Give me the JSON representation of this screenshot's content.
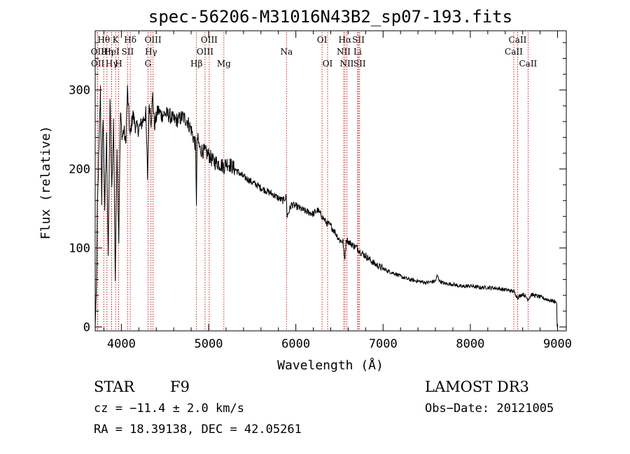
{
  "chart_data": {
    "type": "line",
    "title": "spec-56206-M31016N43B2_sp07-193.fits",
    "xlabel": "Wavelength (Å)",
    "ylabel": "Flux (relative)",
    "xlim": [
      3700,
      9100
    ],
    "ylim": [
      -5,
      375
    ],
    "xticks": [
      4000,
      5000,
      6000,
      7000,
      8000,
      9000
    ],
    "xtick_labels": [
      "4000",
      "5000",
      "6000",
      "7000",
      "8000",
      "9000"
    ],
    "yticks": [
      0,
      100,
      200,
      300
    ],
    "ytick_labels": [
      "0",
      "100",
      "200",
      "300"
    ],
    "series": [
      {
        "name": "flux",
        "x": [
          3700,
          3715,
          3725,
          3740,
          3760,
          3775,
          3790,
          3810,
          3830,
          3850,
          3870,
          3890,
          3910,
          3930,
          3950,
          3970,
          3990,
          4010,
          4030,
          4050,
          4070,
          4100,
          4130,
          4160,
          4190,
          4220,
          4250,
          4280,
          4300,
          4320,
          4340,
          4360,
          4380,
          4420,
          4460,
          4500,
          4550,
          4600,
          4650,
          4700,
          4750,
          4800,
          4850,
          4860,
          4870,
          4900,
          4950,
          5000,
          5050,
          5100,
          5150,
          5180,
          5200,
          5250,
          5300,
          5350,
          5400,
          5450,
          5500,
          5550,
          5600,
          5650,
          5700,
          5750,
          5800,
          5850,
          5890,
          5900,
          5950,
          6000,
          6050,
          6100,
          6150,
          6200,
          6250,
          6300,
          6350,
          6400,
          6450,
          6500,
          6540,
          6560,
          6580,
          6600,
          6650,
          6700,
          6750,
          6800,
          6850,
          6900,
          6950,
          7000,
          7050,
          7100,
          7150,
          7200,
          7300,
          7400,
          7500,
          7600,
          7620,
          7650,
          7700,
          7800,
          7900,
          8000,
          8100,
          8200,
          8300,
          8400,
          8500,
          8542,
          8600,
          8662,
          8700,
          8800,
          8900,
          8980,
          8990,
          8995
        ],
        "y": [
          0,
          55,
          150,
          210,
          300,
          160,
          270,
          150,
          240,
          90,
          290,
          170,
          260,
          60,
          230,
          110,
          270,
          240,
          250,
          230,
          300,
          240,
          270,
          255,
          250,
          255,
          262,
          270,
          190,
          285,
          260,
          293,
          255,
          275,
          268,
          270,
          268,
          262,
          262,
          266,
          262,
          250,
          230,
          160,
          240,
          225,
          222,
          218,
          210,
          208,
          205,
          203,
          208,
          205,
          200,
          195,
          190,
          187,
          183,
          180,
          176,
          173,
          170,
          167,
          163,
          160,
          165,
          140,
          155,
          153,
          150,
          147,
          145,
          143,
          148,
          140,
          132,
          128,
          120,
          110,
          108,
          85,
          112,
          108,
          104,
          100,
          94,
          90,
          85,
          80,
          77,
          74,
          71,
          69,
          67,
          64,
          60,
          58,
          56,
          58,
          65,
          58,
          55,
          54,
          51,
          52,
          50,
          50,
          49,
          47,
          45,
          37,
          42,
          35,
          41,
          38,
          34,
          32,
          30,
          0
        ]
      }
    ],
    "lines": [
      {
        "name": "Hθ",
        "x": 3798,
        "row": 0
      },
      {
        "name": "OII",
        "x": 3727,
        "row": 1
      },
      {
        "name": "OII",
        "x": 3729,
        "row": 2
      },
      {
        "name": "Hη",
        "x": 3835,
        "row": 1
      },
      {
        "name": "Hγ",
        "x": 3889,
        "row": 2
      },
      {
        "name": "K",
        "x": 3934,
        "row": 0
      },
      {
        "name": "HeI",
        "x": 3889,
        "row": 1
      },
      {
        "name": "H",
        "x": 3969,
        "row": 2
      },
      {
        "name": "SII",
        "x": 4072,
        "row": 1
      },
      {
        "name": "Hδ",
        "x": 4102,
        "row": 0
      },
      {
        "name": "OIII",
        "x": 4363,
        "row": 0
      },
      {
        "name": "Hγ",
        "x": 4340,
        "row": 1
      },
      {
        "name": "G",
        "x": 4305,
        "row": 2
      },
      {
        "name": "Hβ",
        "x": 4861,
        "row": 2
      },
      {
        "name": "OIII",
        "x": 4959,
        "row": 1
      },
      {
        "name": "OIII",
        "x": 5007,
        "row": 0
      },
      {
        "name": "Mg",
        "x": 5175,
        "row": 2
      },
      {
        "name": "Na",
        "x": 5893,
        "row": 1
      },
      {
        "name": "OI",
        "x": 6300,
        "row": 0
      },
      {
        "name": "OI",
        "x": 6364,
        "row": 2
      },
      {
        "name": "Hα",
        "x": 6563,
        "row": 0
      },
      {
        "name": "NII",
        "x": 6548,
        "row": 1
      },
      {
        "name": "NII",
        "x": 6584,
        "row": 2
      },
      {
        "name": "SII",
        "x": 6717,
        "row": 0
      },
      {
        "name": "Li",
        "x": 6708,
        "row": 1
      },
      {
        "name": "SII",
        "x": 6731,
        "row": 2
      },
      {
        "name": "CaII",
        "x": 8542,
        "row": 0
      },
      {
        "name": "CaII",
        "x": 8498,
        "row": 1
      },
      {
        "name": "CaII",
        "x": 8662,
        "row": 2
      }
    ]
  },
  "info": {
    "object_class": "STAR",
    "subclass": "F9",
    "survey": "LAMOST DR3",
    "cz": "cz = −11.4 ± 2.0 km/s",
    "obs_date": "Obs−Date: 20121005",
    "radec": "RA =  18.39138, DEC =  42.05261"
  }
}
